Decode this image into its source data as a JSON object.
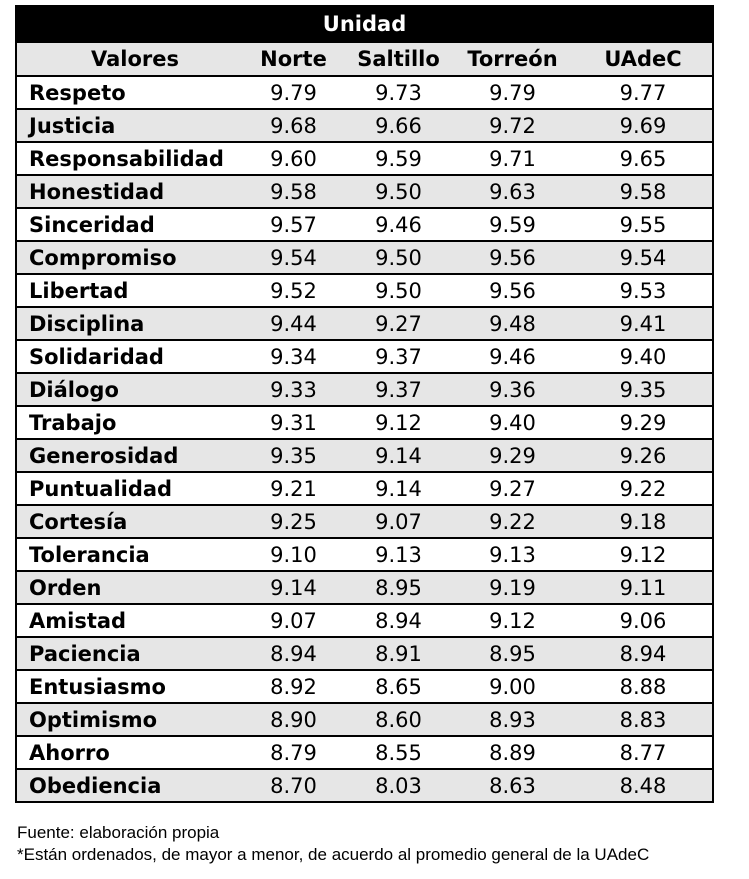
{
  "table": {
    "title": "Unidad",
    "headers": [
      "Valores",
      "Norte",
      "Saltillo",
      "Torreón",
      "UAdeC"
    ],
    "rows": [
      [
        "Respeto",
        "9.79",
        "9.73",
        "9.79",
        "9.77"
      ],
      [
        "Justicia",
        "9.68",
        "9.66",
        "9.72",
        "9.69"
      ],
      [
        "Responsabilidad",
        "9.60",
        "9.59",
        "9.71",
        "9.65"
      ],
      [
        "Honestidad",
        "9.58",
        "9.50",
        "9.63",
        "9.58"
      ],
      [
        "Sinceridad",
        "9.57",
        "9.46",
        "9.59",
        "9.55"
      ],
      [
        "Compromiso",
        "9.54",
        "9.50",
        "9.56",
        "9.54"
      ],
      [
        "Libertad",
        "9.52",
        "9.50",
        "9.56",
        "9.53"
      ],
      [
        "Disciplina",
        "9.44",
        "9.27",
        "9.48",
        "9.41"
      ],
      [
        "Solidaridad",
        "9.34",
        "9.37",
        "9.46",
        "9.40"
      ],
      [
        "Diálogo",
        "9.33",
        "9.37",
        "9.36",
        "9.35"
      ],
      [
        "Trabajo",
        "9.31",
        "9.12",
        "9.40",
        "9.29"
      ],
      [
        "Generosidad",
        "9.35",
        "9.14",
        "9.29",
        "9.26"
      ],
      [
        "Puntualidad",
        "9.21",
        "9.14",
        "9.27",
        "9.22"
      ],
      [
        "Cortesía",
        "9.25",
        "9.07",
        "9.22",
        "9.18"
      ],
      [
        "Tolerancia",
        "9.10",
        "9.13",
        "9.13",
        "9.12"
      ],
      [
        "Orden",
        "9.14",
        "8.95",
        "9.19",
        "9.11"
      ],
      [
        "Amistad",
        "9.07",
        "8.94",
        "9.12",
        "9.06"
      ],
      [
        "Paciencia",
        "8.94",
        "8.91",
        "8.95",
        "8.94"
      ],
      [
        "Entusiasmo",
        "8.92",
        "8.65",
        "9.00",
        "8.88"
      ],
      [
        "Optimismo",
        "8.90",
        "8.60",
        "8.93",
        "8.83"
      ],
      [
        "Ahorro",
        "8.79",
        "8.55",
        "8.89",
        "8.77"
      ],
      [
        "Obediencia",
        "8.70",
        "8.03",
        "8.63",
        "8.48"
      ]
    ]
  },
  "notes": {
    "source": "Fuente: elaboración propia",
    "footnote": "*Están ordenados, de mayor a menor, de acuerdo al promedio general de la UAdeC"
  }
}
